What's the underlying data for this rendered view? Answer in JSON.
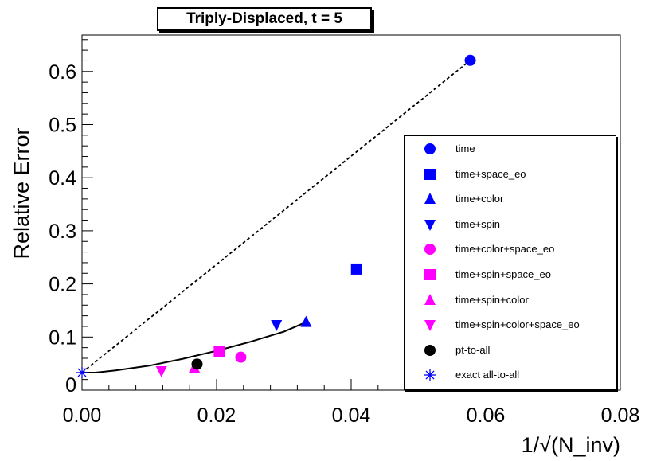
{
  "chart_data": {
    "type": "scatter",
    "title": "Triply-Displaced, t = 5",
    "xlabel": "1/√(N_inv)",
    "ylabel": "Relative Error",
    "xlim": [
      0.0,
      0.08
    ],
    "ylim": [
      0.0,
      0.7
    ],
    "x_ticks": [
      "0.00",
      "0.02",
      "0.04",
      "0.06",
      "0.08"
    ],
    "x_tick_values": [
      0.0,
      0.02,
      0.04,
      0.06,
      0.08
    ],
    "y_ticks": [
      "0",
      "0.1",
      "0.2",
      "0.3",
      "0.4",
      "0.5",
      "0.6"
    ],
    "y_tick_values": [
      0.0,
      0.1,
      0.2,
      0.3,
      0.4,
      0.5,
      0.6
    ],
    "legend_position": "right",
    "series": [
      {
        "name": "time",
        "marker": "circle",
        "color": "#0000ff",
        "x": 0.0577,
        "y": 0.621
      },
      {
        "name": "time+space_eo",
        "marker": "square",
        "color": "#0000ff",
        "x": 0.0408,
        "y": 0.228
      },
      {
        "name": "time+color",
        "marker": "triangle-up",
        "color": "#0000ff",
        "x": 0.0333,
        "y": 0.128
      },
      {
        "name": "time+spin",
        "marker": "triangle-down",
        "color": "#0000ff",
        "x": 0.0289,
        "y": 0.123
      },
      {
        "name": "time+color+space_eo",
        "marker": "circle",
        "color": "#ff00ff",
        "x": 0.0236,
        "y": 0.062
      },
      {
        "name": "time+spin+space_eo",
        "marker": "square",
        "color": "#ff00ff",
        "x": 0.0204,
        "y": 0.072
      },
      {
        "name": "time+spin+color",
        "marker": "triangle-up",
        "color": "#ff00ff",
        "x": 0.0167,
        "y": 0.042
      },
      {
        "name": "time+spin+color+space_eo",
        "marker": "triangle-down",
        "color": "#ff00ff",
        "x": 0.0118,
        "y": 0.036
      },
      {
        "name": "pt-to-all",
        "marker": "circle",
        "color": "#000000",
        "x": 0.0171,
        "y": 0.049
      },
      {
        "name": "exact all-to-all",
        "marker": "star",
        "color": "#0000ff",
        "x": 0.0,
        "y": 0.033
      }
    ],
    "fit_curves": [
      {
        "style": "dashed",
        "color": "#000000",
        "points": [
          [
            0.0,
            0.033
          ],
          [
            0.0577,
            0.621
          ]
        ]
      },
      {
        "style": "solid",
        "color": "#000000",
        "points": [
          [
            0.0,
            0.033
          ],
          [
            0.002,
            0.033
          ],
          [
            0.005,
            0.037
          ],
          [
            0.01,
            0.046
          ],
          [
            0.015,
            0.059
          ],
          [
            0.02,
            0.074
          ],
          [
            0.025,
            0.091
          ],
          [
            0.03,
            0.11
          ],
          [
            0.0333,
            0.128
          ]
        ]
      }
    ]
  }
}
